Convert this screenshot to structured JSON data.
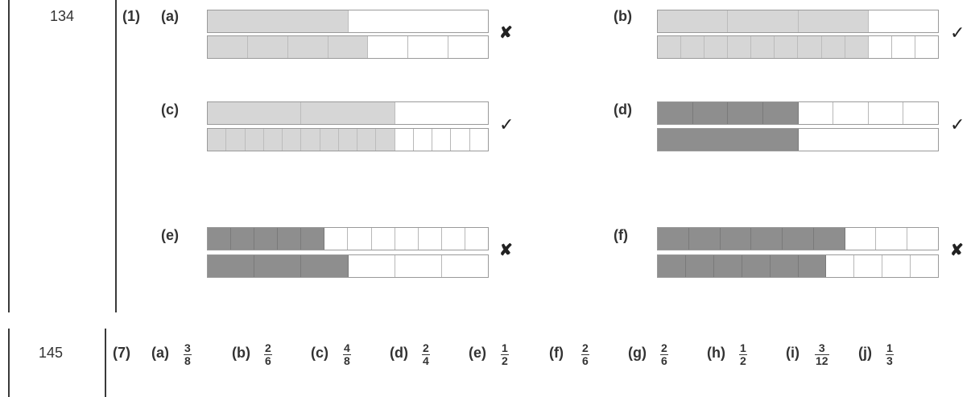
{
  "section1": {
    "page": "134",
    "question": "(1)",
    "items": [
      {
        "label": "(a)",
        "mark": "✘",
        "top": {
          "cells": 2,
          "filled": 1,
          "shade": "light"
        },
        "bottom": {
          "cells": 7,
          "filled": 4,
          "shade": "light"
        }
      },
      {
        "label": "(b)",
        "mark": "✓",
        "top": {
          "cells": 4,
          "filled": 3,
          "shade": "light"
        },
        "bottom": {
          "cells": 12,
          "filled": 9,
          "shade": "light"
        }
      },
      {
        "label": "(c)",
        "mark": "✓",
        "top": {
          "cells": 3,
          "filled": 2,
          "shade": "light"
        },
        "bottom": {
          "cells": 15,
          "filled": 10,
          "shade": "light"
        }
      },
      {
        "label": "(d)",
        "mark": "✓",
        "top": {
          "cells": 8,
          "filled": 4,
          "shade": "dark"
        },
        "bottom": {
          "cells": 2,
          "filled": 1,
          "shade": "dark"
        }
      },
      {
        "label": "(e)",
        "mark": "✘",
        "top": {
          "cells": 12,
          "filled": 5,
          "shade": "dark"
        },
        "bottom": {
          "cells": 6,
          "filled": 3,
          "shade": "dark"
        }
      },
      {
        "label": "(f)",
        "mark": "✘",
        "top": {
          "cells": 9,
          "filled": 6,
          "shade": "dark"
        },
        "bottom": {
          "cells": 10,
          "filled": 6,
          "shade": "dark"
        }
      }
    ]
  },
  "section2": {
    "page": "145",
    "question": "(7)",
    "answers": [
      {
        "label": "(a)",
        "num": "3",
        "den": "8"
      },
      {
        "label": "(b)",
        "num": "2",
        "den": "6"
      },
      {
        "label": "(c)",
        "num": "4",
        "den": "8"
      },
      {
        "label": "(d)",
        "num": "2",
        "den": "4"
      },
      {
        "label": "(e)",
        "num": "1",
        "den": "2"
      },
      {
        "label": "(f)",
        "num": "2",
        "den": "6"
      },
      {
        "label": "(g)",
        "num": "2",
        "den": "6"
      },
      {
        "label": "(h)",
        "num": "1",
        "den": "2"
      },
      {
        "label": "(i)",
        "num": "3",
        "den": "12"
      },
      {
        "label": "(j)",
        "num": "1",
        "den": "3"
      }
    ]
  }
}
